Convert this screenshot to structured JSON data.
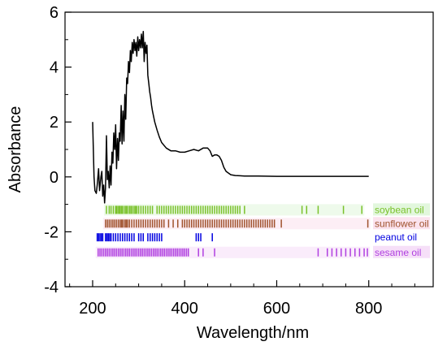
{
  "chart_data": {
    "type": "line",
    "xlabel": "Wavelength/nm",
    "ylabel": "Absorbance",
    "xlim": [
      140,
      940
    ],
    "ylim": [
      -4,
      6
    ],
    "xticks": [
      200,
      400,
      600,
      800
    ],
    "yticks": [
      -4,
      -2,
      0,
      2,
      4,
      6
    ],
    "grid": false,
    "series": [
      {
        "name": "",
        "color": "#000000",
        "x": [
          200,
          203,
          205,
          208,
          210,
          213,
          215,
          218,
          220,
          222,
          224,
          226,
          228,
          230,
          232,
          234,
          236,
          238,
          240,
          242,
          244,
          246,
          248,
          250,
          252,
          254,
          256,
          258,
          260,
          262,
          264,
          266,
          268,
          270,
          272,
          274,
          276,
          278,
          280,
          282,
          284,
          286,
          288,
          290,
          292,
          294,
          296,
          298,
          300,
          302,
          304,
          306,
          308,
          310,
          312,
          314,
          316,
          318,
          320,
          322,
          324,
          326,
          328,
          330,
          335,
          340,
          345,
          350,
          360,
          370,
          380,
          390,
          400,
          410,
          420,
          430,
          440,
          450,
          455,
          460,
          465,
          470,
          475,
          480,
          485,
          490,
          500,
          510,
          520,
          530,
          540,
          560,
          600,
          650,
          700,
          750,
          800
        ],
        "y": [
          2.0,
          0.0,
          -0.5,
          -0.6,
          -0.3,
          0.3,
          -0.5,
          0.0,
          0.2,
          -0.7,
          -0.3,
          -0.95,
          -0.4,
          1.5,
          -0.1,
          0.2,
          -0.4,
          0.4,
          -0.3,
          0.9,
          0.5,
          1.6,
          1.0,
          1.9,
          0.3,
          1.4,
          0.6,
          1.6,
          1.3,
          2.6,
          1.2,
          2.4,
          1.3,
          3.0,
          2.1,
          3.6,
          3.4,
          4.2,
          3.8,
          4.6,
          4.2,
          4.9,
          4.5,
          5.0,
          4.6,
          4.9,
          4.4,
          5.1,
          4.6,
          5.0,
          4.7,
          5.2,
          4.7,
          5.3,
          4.2,
          4.9,
          4.5,
          4.8,
          3.7,
          3.4,
          3.1,
          2.9,
          2.6,
          2.4,
          2.0,
          1.7,
          1.45,
          1.25,
          1.05,
          0.95,
          0.95,
          0.9,
          0.9,
          0.95,
          1.0,
          0.95,
          1.05,
          1.05,
          0.95,
          0.75,
          0.8,
          0.8,
          0.75,
          0.6,
          0.35,
          0.2,
          0.08,
          0.05,
          0.04,
          0.03,
          0.03,
          0.03,
          0.02,
          0.02,
          0.02,
          0.02,
          0.02
        ]
      }
    ],
    "marker_rows": [
      {
        "name": "soybean oil",
        "color": "#79c12a",
        "bg": "#e2f7dd",
        "y": -1.2,
        "x": [
          230,
          236,
          240,
          245,
          250,
          252,
          255,
          258,
          260,
          263,
          266,
          270,
          273,
          276,
          280,
          283,
          286,
          290,
          293,
          296,
          300,
          305,
          310,
          315,
          320,
          325,
          330,
          340,
          345,
          350,
          355,
          360,
          365,
          370,
          375,
          380,
          385,
          390,
          395,
          400,
          405,
          410,
          415,
          420,
          425,
          430,
          435,
          440,
          445,
          450,
          455,
          460,
          465,
          470,
          475,
          480,
          485,
          490,
          495,
          500,
          505,
          510,
          515,
          520,
          530,
          655,
          665,
          690,
          745,
          785
        ]
      },
      {
        "name": "sunflower oil",
        "color": "#a0522d",
        "bg": "#fbe3ee",
        "y": -1.7,
        "x": [
          228,
          232,
          236,
          240,
          244,
          248,
          252,
          256,
          260,
          263,
          266,
          270,
          273,
          276,
          280,
          285,
          290,
          295,
          300,
          305,
          310,
          315,
          320,
          325,
          330,
          335,
          340,
          345,
          350,
          355,
          365,
          375,
          385,
          395,
          400,
          405,
          410,
          415,
          420,
          425,
          430,
          435,
          440,
          445,
          450,
          455,
          460,
          465,
          470,
          475,
          480,
          485,
          490,
          495,
          500,
          505,
          510,
          515,
          520,
          525,
          530,
          535,
          540,
          545,
          550,
          555,
          560,
          565,
          570,
          575,
          580,
          585,
          590,
          595,
          610,
          798
        ]
      },
      {
        "name": "peanut oil",
        "color": "#0000e0",
        "bg": "#ffffff",
        "y": -2.2,
        "x": [
          210,
          213,
          216,
          219,
          222,
          228,
          231,
          234,
          237,
          240,
          245,
          250,
          255,
          260,
          265,
          270,
          275,
          280,
          285,
          290,
          300,
          305,
          310,
          320,
          325,
          330,
          335,
          340,
          345,
          350,
          425,
          430,
          435,
          460
        ]
      },
      {
        "name": "sesame oil",
        "color": "#b040e0",
        "bg": "#f6dff8",
        "y": -2.75,
        "x": [
          212,
          216,
          220,
          224,
          228,
          232,
          236,
          240,
          244,
          248,
          252,
          256,
          260,
          264,
          268,
          272,
          276,
          280,
          284,
          288,
          292,
          296,
          300,
          304,
          308,
          312,
          316,
          320,
          324,
          328,
          332,
          336,
          340,
          344,
          348,
          352,
          356,
          360,
          364,
          368,
          372,
          376,
          380,
          384,
          388,
          392,
          396,
          400,
          404,
          408,
          430,
          440,
          465,
          690,
          710,
          720,
          730,
          740,
          750,
          760,
          770,
          780,
          790,
          797
        ]
      }
    ]
  }
}
